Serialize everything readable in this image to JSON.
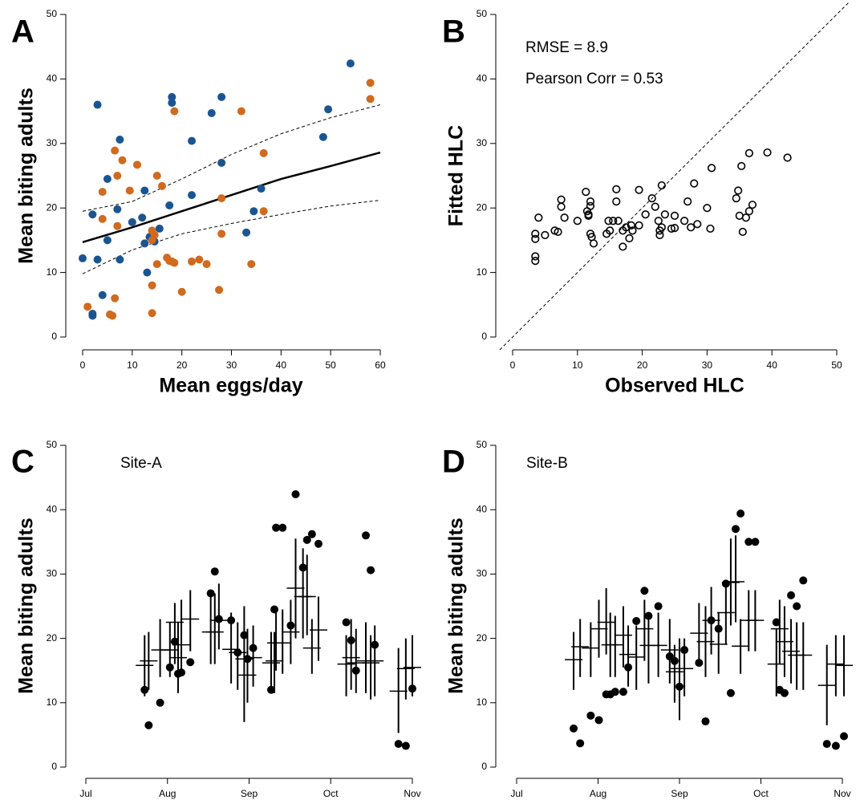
{
  "chart_data": [
    {
      "type": "scatter",
      "panel": "A",
      "xlabel": "Mean eggs/day",
      "ylabel": "Mean biting adults",
      "xlim": [
        0,
        60
      ],
      "ylim": [
        0,
        50
      ],
      "xticks": [
        0,
        10,
        20,
        30,
        40,
        50,
        60
      ],
      "yticks": [
        0,
        10,
        20,
        30,
        40,
        50
      ],
      "series": [
        {
          "color": "#1a5592",
          "marker": "filled",
          "x": [
            0,
            2,
            2,
            2,
            3,
            3,
            4,
            5,
            5,
            7,
            7.5,
            7.5,
            10,
            12,
            12.5,
            12.5,
            13,
            13.5,
            14.5,
            15.5,
            17.5,
            18,
            18,
            22,
            22,
            26,
            28,
            28,
            33,
            34.5,
            36,
            48.5,
            49.5,
            54
          ],
          "values": [
            12.2,
            19,
            3.3,
            3.6,
            36,
            12,
            6.5,
            24.5,
            15,
            19.8,
            30.6,
            12,
            17.8,
            18.5,
            14.5,
            22.7,
            10,
            15.5,
            14.8,
            16.8,
            20.4,
            37.2,
            36.3,
            30.4,
            22,
            34.7,
            37.2,
            27,
            16.2,
            19.5,
            23,
            31,
            35.3,
            42.4
          ]
        },
        {
          "color": "#d06a1e",
          "marker": "filled",
          "x": [
            1,
            5.5,
            6,
            6.5,
            4,
            4,
            6.5,
            7,
            7,
            8,
            9.5,
            11,
            14,
            14,
            14.5,
            14,
            14,
            15,
            15,
            16,
            17,
            17.5,
            18,
            18.5,
            18.5,
            20,
            22,
            23.5,
            25,
            27.5,
            28,
            28,
            32,
            34,
            36.5,
            36.5,
            58,
            58
          ],
          "values": [
            4.7,
            3.5,
            3.3,
            6,
            18.3,
            22.5,
            28.9,
            25,
            17.2,
            27.4,
            22.7,
            26.7,
            16.5,
            15,
            15.8,
            8,
            3.7,
            25,
            11.3,
            23.4,
            12.3,
            11.8,
            11.7,
            35,
            11.5,
            7,
            11.7,
            12,
            11.3,
            7.3,
            16,
            21.5,
            35,
            11.3,
            28.5,
            19.5,
            36.9,
            39.4
          ]
        }
      ],
      "lines": [
        {
          "color": "#000000",
          "line_style": "solid",
          "x": [
            0,
            10,
            20,
            30,
            40,
            50,
            60
          ],
          "values": [
            14.7,
            17,
            19.5,
            22,
            24.5,
            26.5,
            28.6
          ]
        },
        {
          "color": "#000000",
          "line_style": "dashed",
          "x": [
            0,
            10,
            20,
            30,
            40,
            50,
            60
          ],
          "values": [
            19.5,
            21,
            24.5,
            28.3,
            31.5,
            34,
            36
          ]
        },
        {
          "color": "#000000",
          "line_style": "dashed",
          "x": [
            0,
            10,
            20,
            30,
            40,
            50,
            60
          ],
          "values": [
            9.8,
            13.5,
            16,
            17.6,
            19,
            20.3,
            21.2
          ]
        }
      ]
    },
    {
      "type": "scatter",
      "panel": "B",
      "xlabel": "Observed HLC",
      "ylabel": "Fitted HLC",
      "annotations": [
        "RMSE = 8.9",
        "Pearson Corr = 0.53"
      ],
      "identity_line": true,
      "xlim": [
        0,
        50
      ],
      "ylim": [
        0,
        50
      ],
      "xticks": [
        0,
        10,
        20,
        30,
        40,
        50
      ],
      "yticks": [
        0,
        10,
        20,
        30,
        40,
        50
      ],
      "series": [
        {
          "color": "#000000",
          "marker": "open",
          "x": [
            3.5,
            3.5,
            3.5,
            3.5,
            4,
            5,
            6.5,
            7,
            7.5,
            7.5,
            8,
            10,
            11.3,
            11.5,
            11.7,
            11.7,
            12,
            12,
            12,
            12.2,
            12.5,
            14.5,
            14.8,
            15,
            15.5,
            16,
            16,
            16.3,
            17,
            17,
            17.5,
            18,
            18.3,
            18.5,
            19.5,
            19.5,
            20.5,
            21.5,
            22,
            22.5,
            22.7,
            22.7,
            23,
            23,
            23.5,
            24.5,
            25,
            25,
            26.5,
            27,
            27.5,
            28,
            28.5,
            30,
            30.5,
            30.7,
            34.5,
            34.8,
            35,
            35.3,
            35.5,
            36,
            36.5,
            36.5,
            37,
            39.3,
            42.4
          ],
          "values": [
            16,
            15.2,
            12.5,
            11.8,
            18.5,
            15.8,
            16.5,
            16.3,
            20.2,
            21.3,
            18.5,
            18,
            22.5,
            19.5,
            19,
            18.8,
            20.3,
            21,
            16,
            15.5,
            14.5,
            16,
            18,
            16.5,
            18,
            22.9,
            21,
            18,
            16.5,
            14,
            17,
            15.3,
            17.3,
            16.5,
            22.8,
            17.3,
            19,
            21.5,
            20.2,
            18,
            16.5,
            15.8,
            23.5,
            17,
            19,
            16.8,
            18.8,
            16.9,
            18,
            21,
            17,
            23.8,
            17.5,
            20,
            16.8,
            26.2,
            21.5,
            22.7,
            18.8,
            26.5,
            16.3,
            18.5,
            28.5,
            19.5,
            20.5,
            28.6,
            27.8
          ]
        }
      ]
    },
    {
      "type": "scatter",
      "panel": "C",
      "title": "Site-A",
      "ylabel": "Mean biting adults",
      "xlim": [
        0,
        4
      ],
      "ylim": [
        0,
        50
      ],
      "xticks": [
        {
          "value": 0,
          "label": "Jul"
        },
        {
          "value": 1,
          "label": "Aug"
        },
        {
          "value": 2,
          "label": "Sep"
        },
        {
          "value": 3,
          "label": "Oct"
        },
        {
          "value": 4,
          "label": "Nov"
        }
      ],
      "yticks": [
        0,
        10,
        20,
        30,
        40,
        50
      ],
      "series": [
        {
          "color": "#000000",
          "marker": "filled",
          "x": [
            0.72,
            0.77,
            0.91,
            1.03,
            1.09,
            1.13,
            1.17,
            1.28,
            1.53,
            1.58,
            1.63,
            1.78,
            1.86,
            1.94,
            1.98,
            2.05,
            2.27,
            2.31,
            2.33,
            2.41,
            2.51,
            2.57,
            2.66,
            2.71,
            2.77,
            2.85,
            3.19,
            3.25,
            3.31,
            3.43,
            3.49,
            3.54,
            3.83,
            3.92,
            4.0
          ],
          "values": [
            12,
            6.5,
            10,
            15.5,
            19.5,
            14.5,
            14.7,
            16.3,
            27,
            30.4,
            23,
            22.8,
            17.8,
            20.5,
            16.8,
            18.5,
            12,
            24.5,
            37.2,
            37.2,
            22,
            42.4,
            31,
            35.3,
            36.2,
            34.7,
            22.5,
            19.7,
            15,
            36,
            30.6,
            19,
            3.6,
            3.3,
            12.2
          ]
        }
      ],
      "error_bars": {
        "color": "#000000",
        "x": [
          0.72,
          0.77,
          0.91,
          1.03,
          1.09,
          1.13,
          1.17,
          1.28,
          1.53,
          1.58,
          1.63,
          1.78,
          1.86,
          1.94,
          1.98,
          2.05,
          2.27,
          2.31,
          2.33,
          2.41,
          2.51,
          2.57,
          2.66,
          2.71,
          2.77,
          2.85,
          3.19,
          3.25,
          3.31,
          3.43,
          3.49,
          3.54,
          3.83,
          3.92,
          4.0
        ],
        "values": [
          15.8,
          16.5,
          18.2,
          18.2,
          22.5,
          17,
          19,
          23,
          21,
          21,
          22.8,
          18.3,
          17.8,
          16.8,
          14.3,
          17,
          16.2,
          16.5,
          19.3,
          19.3,
          21,
          27.8,
          26.5,
          26.5,
          18.5,
          21.3,
          16,
          17,
          16.2,
          16.5,
          16.2,
          16.5,
          11.8,
          15.3,
          15.5
        ],
        "low": [
          11,
          12,
          14,
          14,
          16,
          11.5,
          15,
          18,
          16,
          16,
          18.3,
          13,
          12,
          7,
          10,
          12.5,
          12,
          11.5,
          15,
          14.5,
          16,
          20,
          20,
          20.5,
          14.5,
          16.5,
          11,
          12,
          11.5,
          11.5,
          10.5,
          11,
          5.3,
          10.5,
          11
        ],
        "high": [
          20.5,
          21,
          23,
          22.5,
          25.5,
          22.5,
          26,
          27.5,
          26.5,
          27,
          28.5,
          24,
          22.5,
          25,
          21.5,
          22,
          21,
          21,
          24.5,
          24.5,
          26,
          35.5,
          34,
          33,
          23,
          26.5,
          20.5,
          23,
          21.5,
          22.5,
          20.5,
          22,
          18.5,
          20,
          20.5
        ]
      }
    },
    {
      "type": "scatter",
      "panel": "D",
      "title": "Site-B",
      "ylabel": "Mean biting adults",
      "xlim": [
        0,
        4
      ],
      "ylim": [
        0,
        50
      ],
      "xticks": [
        {
          "value": 0,
          "label": "Jul"
        },
        {
          "value": 1,
          "label": "Aug"
        },
        {
          "value": 2,
          "label": "Sep"
        },
        {
          "value": 3,
          "label": "Oct"
        },
        {
          "value": 4,
          "label": "Nov"
        }
      ],
      "yticks": [
        0,
        10,
        20,
        30,
        40,
        50
      ],
      "series": [
        {
          "color": "#000000",
          "marker": "filled",
          "x": [
            0.7,
            0.78,
            0.91,
            1.01,
            1.1,
            1.15,
            1.21,
            1.31,
            1.37,
            1.47,
            1.57,
            1.62,
            1.74,
            1.88,
            1.94,
            2.0,
            2.06,
            2.24,
            2.32,
            2.39,
            2.48,
            2.57,
            2.63,
            2.69,
            2.75,
            2.85,
            2.93,
            3.19,
            3.23,
            3.29,
            3.37,
            3.44,
            3.52,
            3.81,
            3.92,
            4.02
          ],
          "values": [
            6,
            3.7,
            8,
            7.3,
            11.3,
            11.3,
            11.7,
            11.7,
            15.5,
            22.7,
            27.4,
            23.5,
            25,
            17.2,
            16.5,
            12.5,
            18.2,
            16.2,
            7.1,
            22.8,
            21.5,
            28.5,
            11.5,
            37,
            39.4,
            35,
            35,
            22.5,
            12,
            11.5,
            26.7,
            25,
            29,
            3.6,
            3.3,
            4.8
          ]
        }
      ],
      "error_bars": {
        "color": "#000000",
        "x": [
          0.7,
          0.78,
          0.91,
          1.01,
          1.1,
          1.15,
          1.21,
          1.31,
          1.37,
          1.47,
          1.57,
          1.62,
          1.74,
          1.88,
          1.94,
          2.0,
          2.06,
          2.24,
          2.32,
          2.39,
          2.48,
          2.57,
          2.63,
          2.69,
          2.75,
          2.85,
          2.93,
          3.19,
          3.23,
          3.29,
          3.37,
          3.44,
          3.52,
          3.81,
          3.92,
          4.02
        ],
        "values": [
          16.7,
          18.7,
          18.5,
          21.5,
          22.5,
          19,
          19,
          20.5,
          17.5,
          17.1,
          21.5,
          18.9,
          18.9,
          18.2,
          14.8,
          15.3,
          15.3,
          20.8,
          19.5,
          22.8,
          19.1,
          24,
          28.7,
          28.8,
          18.8,
          22.8,
          22.8,
          16,
          21.5,
          19.5,
          18,
          17.4,
          17.4,
          12.7,
          16,
          15.8
        ],
        "low": [
          12,
          14,
          14,
          17,
          17.5,
          14,
          14,
          15.5,
          12.5,
          12,
          16.5,
          13,
          14,
          13,
          10,
          7.3,
          11,
          16,
          14,
          17.5,
          14.5,
          19,
          22,
          22.5,
          14.5,
          18,
          18,
          11,
          16,
          14,
          13,
          12,
          12,
          6.5,
          11,
          11
        ],
        "high": [
          21,
          23,
          22.5,
          26,
          27.8,
          24,
          23.5,
          25,
          22,
          22,
          26,
          24,
          24,
          23,
          19,
          20,
          20,
          25.5,
          25,
          28,
          24,
          28.5,
          35.5,
          36,
          23,
          27.5,
          27.5,
          21.5,
          26,
          25,
          23,
          22.5,
          22.5,
          19,
          20.5,
          20.5
        ]
      }
    }
  ]
}
